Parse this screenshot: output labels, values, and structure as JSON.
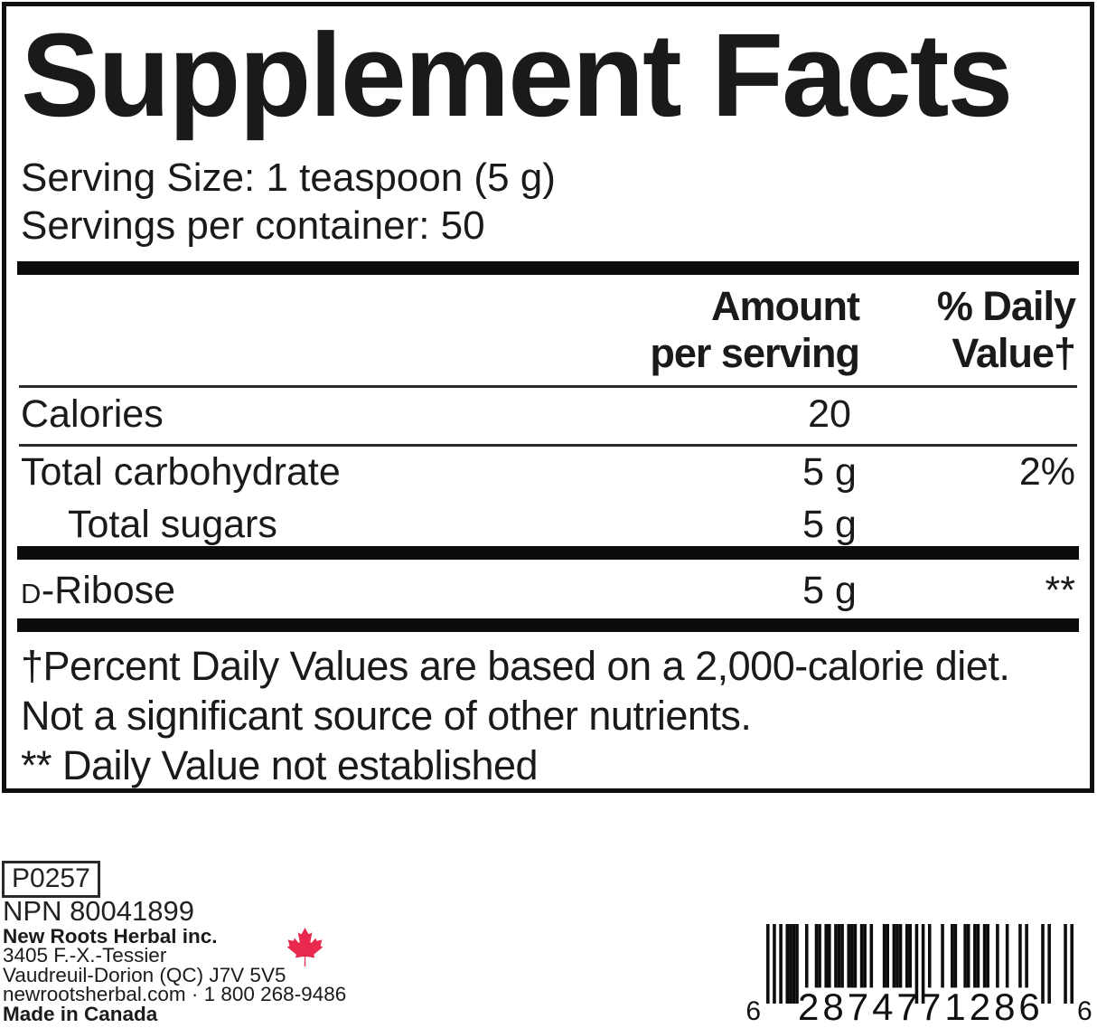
{
  "label": {
    "title": "Supplement Facts",
    "serving_size": "Serving Size: 1 teaspoon (5 g)",
    "servings_per_container": "Servings per container: 50",
    "columns": {
      "amount_line1": "Amount",
      "amount_line2": "per serving",
      "dv_line1": "% Daily",
      "dv_line2": "Value†"
    },
    "rows": [
      {
        "name": "Calories",
        "amount": "20",
        "dv": ""
      },
      {
        "name": "Total carbohydrate",
        "amount": "5 g",
        "dv": "2%"
      },
      {
        "name": "Total sugars",
        "amount": "5 g",
        "dv": ""
      },
      {
        "name_prefix": "D",
        "name": "-Ribose",
        "amount": "5 g",
        "dv": "**"
      }
    ],
    "footnotes": [
      "†Percent Daily Values are based on a 2,000-calorie diet.",
      "Not a significant source of other nutrients.",
      "** Daily Value not established"
    ]
  },
  "footer": {
    "product_code": "P0257",
    "npn": "NPN 80041899",
    "company": {
      "name": "New Roots Herbal inc.",
      "address1": "3405 F.-X.-Tessier",
      "address2": "Vaudreuil-Dorion (QC) J7V 5V5",
      "contact": "newrootsherbal.com · 1 800 268-9486",
      "made_in": "Made in Canada"
    },
    "maple_leaf_color": "#e8294d",
    "barcode": {
      "digits": "628747712866",
      "display": {
        "first": "6",
        "left_group": "28747",
        "right_group": "71286",
        "last": "6"
      }
    }
  }
}
